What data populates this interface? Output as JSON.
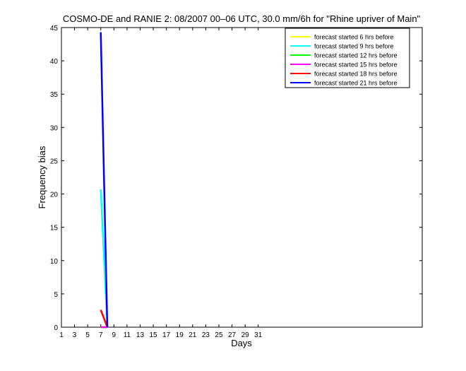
{
  "chart_data": {
    "type": "line",
    "title": "COSMO-DE and RANIE 2: 08/2007 00–06 UTC, 30.0 mm/6h for \"Rhine upriver of Main\"",
    "xlabel": "Days",
    "ylabel": "Frequency bias",
    "xlim": [
      1,
      56
    ],
    "ylim": [
      0,
      45
    ],
    "x_ticks": [
      1,
      3,
      5,
      7,
      9,
      11,
      13,
      15,
      17,
      19,
      21,
      23,
      25,
      27,
      29,
      31
    ],
    "x_tick_labels": [
      "1",
      "3",
      "5",
      "7",
      "9",
      "11",
      "13",
      "15",
      "17",
      "19",
      "21",
      "23",
      "25",
      "27",
      "29",
      "31"
    ],
    "y_ticks": [
      0,
      5,
      10,
      15,
      20,
      25,
      30,
      35,
      40,
      45
    ],
    "y_tick_labels": [
      "0",
      "5",
      "10",
      "15",
      "20",
      "25",
      "30",
      "35",
      "40",
      "45"
    ],
    "grid": false,
    "legend_position": "top-right",
    "series": [
      {
        "name": "forecast started 6 hrs before",
        "color": "#ffff00",
        "x": [
          7,
          8
        ],
        "y": [
          0,
          0
        ]
      },
      {
        "name": "forecast started 9 hrs before",
        "color": "#00ffff",
        "x": [
          7,
          8
        ],
        "y": [
          20.7,
          0
        ]
      },
      {
        "name": "forecast started 12 hrs before",
        "color": "#00ff00",
        "x": [
          7,
          8
        ],
        "y": [
          0,
          0
        ]
      },
      {
        "name": "forecast started 15 hrs before",
        "color": "#ff00ff",
        "x": [
          7,
          8
        ],
        "y": [
          0,
          0
        ]
      },
      {
        "name": "forecast started 18 hrs before",
        "color": "#ff0000",
        "x": [
          7,
          8
        ],
        "y": [
          2.6,
          0
        ]
      },
      {
        "name": "forecast started 21 hrs before",
        "color": "#0000ff",
        "x": [
          7,
          8
        ],
        "y": [
          44.3,
          0
        ]
      }
    ]
  }
}
